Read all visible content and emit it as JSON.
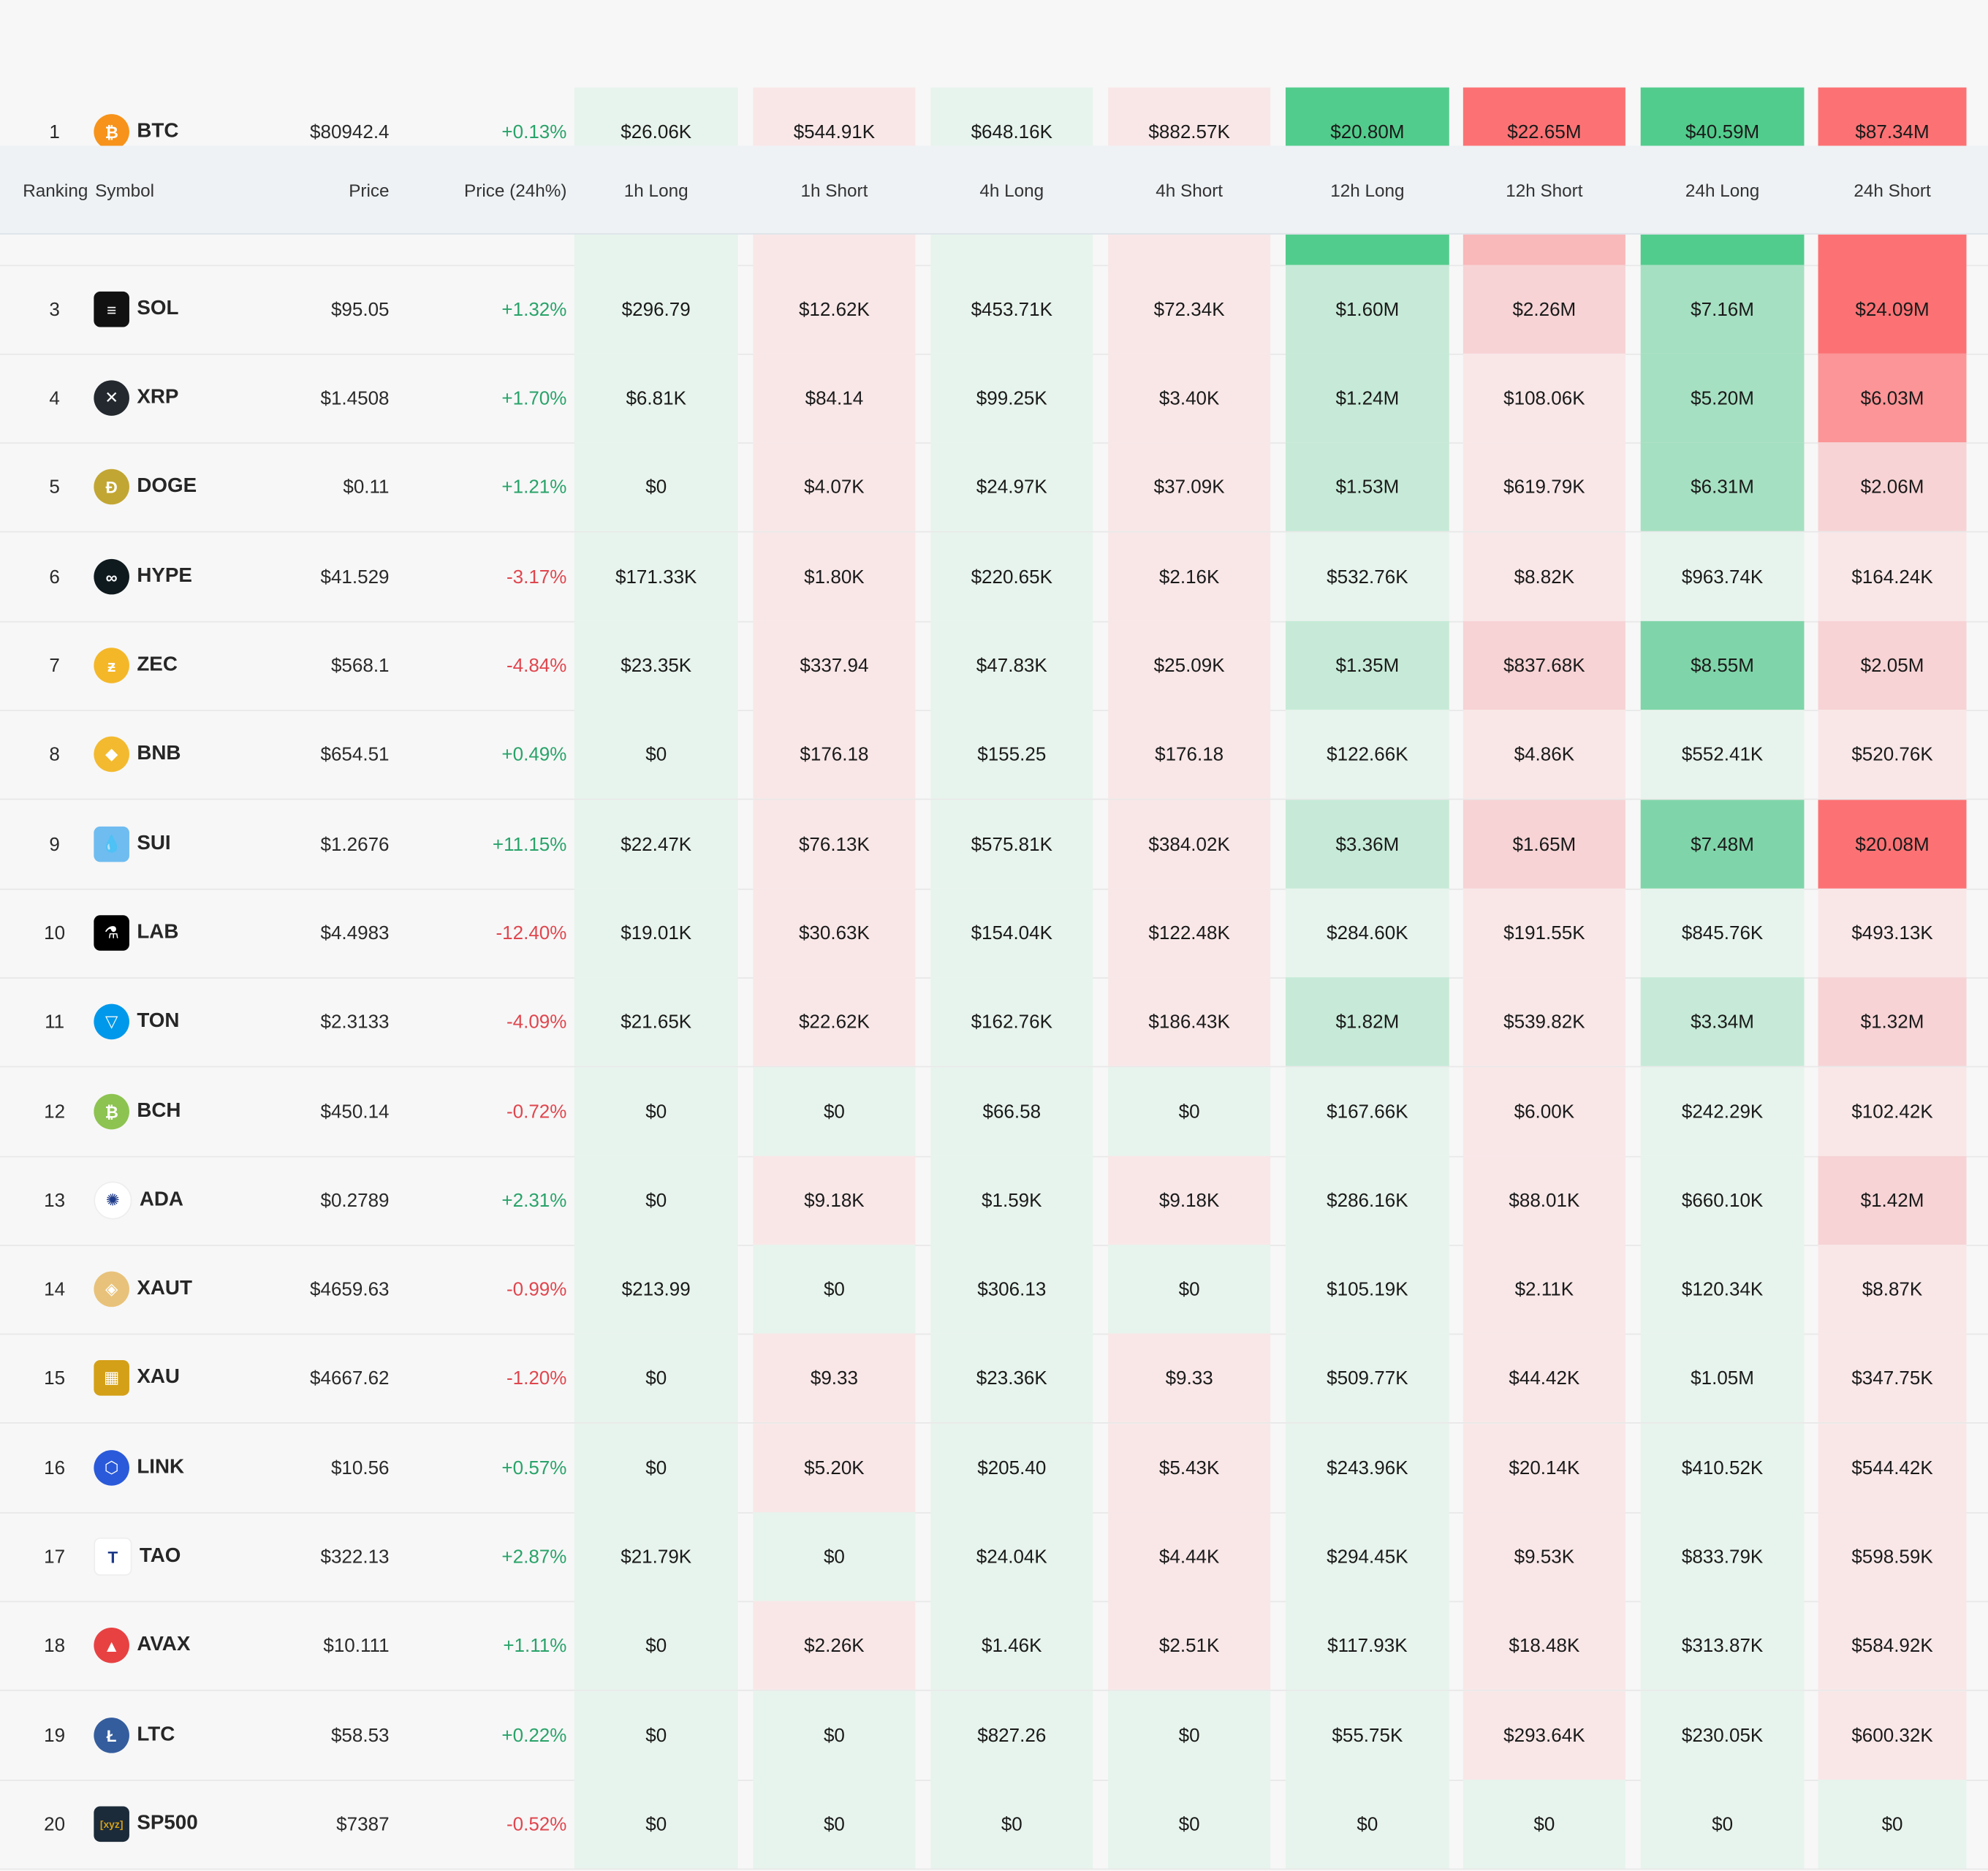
{
  "header": {
    "ranking": "Ranking",
    "symbol": "Symbol",
    "price": "Price",
    "price_change": "Price (24h%)",
    "h1_long": "1h Long",
    "h1_short": "1h Short",
    "h4_long": "4h Long",
    "h4_short": "4h Short",
    "h12_long": "12h Long",
    "h12_short": "12h Short",
    "h24_long": "24h Long",
    "h24_short": "24h Short"
  },
  "colors": {
    "up": "#29a36a",
    "down": "#e0464e",
    "long_scale": [
      "#e7f4ed",
      "#c6ead7",
      "#a6e0c2",
      "#7fd5a9",
      "#52cc8c"
    ],
    "short_scale": [
      "#f9e7e8",
      "#f7d3d5",
      "#f9b8ba",
      "#fb9597",
      "#fc7274"
    ]
  },
  "rows": [
    {
      "rank": "1",
      "symbol": "BTC",
      "icon": "bitcoin-icon",
      "price": "$80942.4",
      "change": "+0.13%",
      "dir": "up",
      "v": [
        "$26.06K",
        "$544.91K",
        "$648.16K",
        "$882.57K",
        "$20.80M",
        "$22.65M",
        "$40.59M",
        "$87.34M"
      ],
      "lvl": [
        0,
        0,
        0,
        0,
        4,
        4,
        4,
        4
      ]
    },
    {
      "rank": "3",
      "symbol": "SOL",
      "icon": "solana-icon",
      "price": "$95.05",
      "change": "+1.32%",
      "dir": "up",
      "v": [
        "$296.79",
        "$12.62K",
        "$453.71K",
        "$72.34K",
        "$1.60M",
        "$2.26M",
        "$7.16M",
        "$24.09M"
      ],
      "lvl": [
        0,
        0,
        0,
        0,
        1,
        1,
        2,
        4
      ]
    },
    {
      "rank": "4",
      "symbol": "XRP",
      "icon": "xrp-icon",
      "price": "$1.4508",
      "change": "+1.70%",
      "dir": "up",
      "v": [
        "$6.81K",
        "$84.14",
        "$99.25K",
        "$3.40K",
        "$1.24M",
        "$108.06K",
        "$5.20M",
        "$6.03M"
      ],
      "lvl": [
        0,
        0,
        0,
        0,
        1,
        0,
        2,
        3
      ]
    },
    {
      "rank": "5",
      "symbol": "DOGE",
      "icon": "doge-icon",
      "price": "$0.11",
      "change": "+1.21%",
      "dir": "up",
      "v": [
        "$0",
        "$4.07K",
        "$24.97K",
        "$37.09K",
        "$1.53M",
        "$619.79K",
        "$6.31M",
        "$2.06M"
      ],
      "lvl": [
        0,
        0,
        0,
        0,
        1,
        0,
        2,
        1
      ]
    },
    {
      "rank": "6",
      "symbol": "HYPE",
      "icon": "hype-icon",
      "price": "$41.529",
      "change": "-3.17%",
      "dir": "down",
      "v": [
        "$171.33K",
        "$1.80K",
        "$220.65K",
        "$2.16K",
        "$532.76K",
        "$8.82K",
        "$963.74K",
        "$164.24K"
      ],
      "lvl": [
        0,
        0,
        0,
        0,
        0,
        0,
        0,
        0
      ]
    },
    {
      "rank": "7",
      "symbol": "ZEC",
      "icon": "zcash-icon",
      "price": "$568.1",
      "change": "-4.84%",
      "dir": "down",
      "v": [
        "$23.35K",
        "$337.94",
        "$47.83K",
        "$25.09K",
        "$1.35M",
        "$837.68K",
        "$8.55M",
        "$2.05M"
      ],
      "lvl": [
        0,
        0,
        0,
        0,
        1,
        1,
        3,
        1
      ]
    },
    {
      "rank": "8",
      "symbol": "BNB",
      "icon": "bnb-icon",
      "price": "$654.51",
      "change": "+0.49%",
      "dir": "up",
      "v": [
        "$0",
        "$176.18",
        "$155.25",
        "$176.18",
        "$122.66K",
        "$4.86K",
        "$552.41K",
        "$520.76K"
      ],
      "lvl": [
        0,
        0,
        0,
        0,
        0,
        0,
        0,
        0
      ]
    },
    {
      "rank": "9",
      "symbol": "SUI",
      "icon": "sui-icon",
      "price": "$1.2676",
      "change": "+11.15%",
      "dir": "up",
      "v": [
        "$22.47K",
        "$76.13K",
        "$575.81K",
        "$384.02K",
        "$3.36M",
        "$1.65M",
        "$7.48M",
        "$20.08M"
      ],
      "lvl": [
        0,
        0,
        0,
        0,
        1,
        1,
        3,
        4
      ]
    },
    {
      "rank": "10",
      "symbol": "LAB",
      "icon": "lab-icon",
      "price": "$4.4983",
      "change": "-12.40%",
      "dir": "down",
      "v": [
        "$19.01K",
        "$30.63K",
        "$154.04K",
        "$122.48K",
        "$284.60K",
        "$191.55K",
        "$845.76K",
        "$493.13K"
      ],
      "lvl": [
        0,
        0,
        0,
        0,
        0,
        0,
        0,
        0
      ]
    },
    {
      "rank": "11",
      "symbol": "TON",
      "icon": "ton-icon",
      "price": "$2.3133",
      "change": "-4.09%",
      "dir": "down",
      "v": [
        "$21.65K",
        "$22.62K",
        "$162.76K",
        "$186.43K",
        "$1.82M",
        "$539.82K",
        "$3.34M",
        "$1.32M"
      ],
      "lvl": [
        0,
        0,
        0,
        0,
        1,
        0,
        1,
        1
      ]
    },
    {
      "rank": "12",
      "symbol": "BCH",
      "icon": "bitcoin-cash-icon",
      "price": "$450.14",
      "change": "-0.72%",
      "dir": "down",
      "v": [
        "$0",
        "$0",
        "$66.58",
        "$0",
        "$167.66K",
        "$6.00K",
        "$242.29K",
        "$102.42K"
      ],
      "lvl": [
        0,
        0,
        0,
        0,
        0,
        0,
        0,
        0
      ],
      "greenAll": true
    },
    {
      "rank": "13",
      "symbol": "ADA",
      "icon": "cardano-icon",
      "price": "$0.2789",
      "change": "+2.31%",
      "dir": "up",
      "v": [
        "$0",
        "$9.18K",
        "$1.59K",
        "$9.18K",
        "$286.16K",
        "$88.01K",
        "$660.10K",
        "$1.42M"
      ],
      "lvl": [
        0,
        0,
        0,
        0,
        0,
        0,
        0,
        1
      ]
    },
    {
      "rank": "14",
      "symbol": "XAUT",
      "icon": "tether-gold-icon",
      "price": "$4659.63",
      "change": "-0.99%",
      "dir": "down",
      "v": [
        "$213.99",
        "$0",
        "$306.13",
        "$0",
        "$105.19K",
        "$2.11K",
        "$120.34K",
        "$8.87K"
      ],
      "lvl": [
        0,
        0,
        0,
        0,
        0,
        0,
        0,
        0
      ],
      "zeroGreen": true
    },
    {
      "rank": "15",
      "symbol": "XAU",
      "icon": "gold-icon",
      "price": "$4667.62",
      "change": "-1.20%",
      "dir": "down",
      "v": [
        "$0",
        "$9.33",
        "$23.36K",
        "$9.33",
        "$509.77K",
        "$44.42K",
        "$1.05M",
        "$347.75K"
      ],
      "lvl": [
        0,
        0,
        0,
        0,
        0,
        0,
        0,
        0
      ]
    },
    {
      "rank": "16",
      "symbol": "LINK",
      "icon": "chainlink-icon",
      "price": "$10.56",
      "change": "+0.57%",
      "dir": "up",
      "v": [
        "$0",
        "$5.20K",
        "$205.40",
        "$5.43K",
        "$243.96K",
        "$20.14K",
        "$410.52K",
        "$544.42K"
      ],
      "lvl": [
        0,
        0,
        0,
        0,
        0,
        0,
        0,
        0
      ]
    },
    {
      "rank": "17",
      "symbol": "TAO",
      "icon": "bittensor-icon",
      "price": "$322.13",
      "change": "+2.87%",
      "dir": "up",
      "v": [
        "$21.79K",
        "$0",
        "$24.04K",
        "$4.44K",
        "$294.45K",
        "$9.53K",
        "$833.79K",
        "$598.59K"
      ],
      "lvl": [
        0,
        0,
        0,
        0,
        0,
        0,
        0,
        0
      ],
      "zeroGreen": true
    },
    {
      "rank": "18",
      "symbol": "AVAX",
      "icon": "avalanche-icon",
      "price": "$10.111",
      "change": "+1.11%",
      "dir": "up",
      "v": [
        "$0",
        "$2.26K",
        "$1.46K",
        "$2.51K",
        "$117.93K",
        "$18.48K",
        "$313.87K",
        "$584.92K"
      ],
      "lvl": [
        0,
        0,
        0,
        0,
        0,
        0,
        0,
        0
      ]
    },
    {
      "rank": "19",
      "symbol": "LTC",
      "icon": "litecoin-icon",
      "price": "$58.53",
      "change": "+0.22%",
      "dir": "up",
      "v": [
        "$0",
        "$0",
        "$827.26",
        "$0",
        "$55.75K",
        "$293.64K",
        "$230.05K",
        "$600.32K"
      ],
      "lvl": [
        0,
        0,
        0,
        0,
        0,
        0,
        0,
        0
      ],
      "zeroGreen": true
    },
    {
      "rank": "20",
      "symbol": "SP500",
      "icon": "xyz-icon",
      "price": "$7387",
      "change": "-0.52%",
      "dir": "down",
      "v": [
        "$0",
        "$0",
        "$0",
        "$0",
        "$0",
        "$0",
        "$0",
        "$0"
      ],
      "lvl": [
        0,
        0,
        0,
        0,
        0,
        0,
        0,
        0
      ],
      "greenAll": true
    }
  ]
}
